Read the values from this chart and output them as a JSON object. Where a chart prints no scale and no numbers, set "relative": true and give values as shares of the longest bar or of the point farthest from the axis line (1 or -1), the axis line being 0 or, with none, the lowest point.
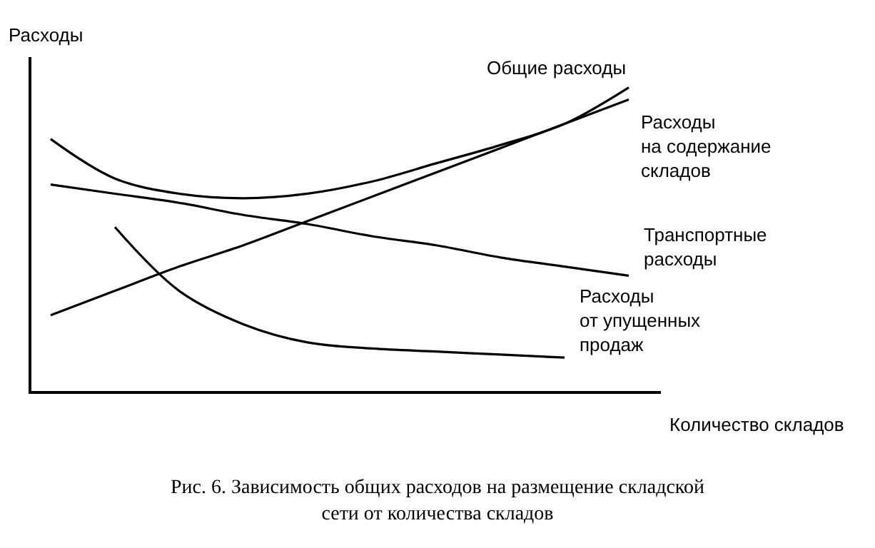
{
  "chart_data": {
    "type": "line",
    "relative": true,
    "title": "Рис. 6. Зависимость общих расходов на размещение складской\nсети от количества складов",
    "xlabel": "Количество складов",
    "ylabel": "Расходы",
    "categories": [
      null,
      null,
      null,
      null,
      null,
      null,
      null,
      null,
      null,
      null
    ],
    "series": [
      {
        "name": "Общие расходы",
        "color": "#000000",
        "values": [
          0.83,
          0.7,
          0.65,
          0.635,
          0.65,
          0.69,
          0.75,
          0.81,
          0.88,
          1.0
        ]
      },
      {
        "name": "Расходы\nна содержание\nскладов",
        "color": "#000000",
        "values": [
          0.25,
          0.33,
          0.41,
          0.48,
          0.56,
          0.64,
          0.72,
          0.8,
          0.88,
          0.96
        ]
      },
      {
        "name": "Транспортные\nрасходы",
        "color": "#000000",
        "values": [
          0.68,
          0.65,
          0.62,
          0.58,
          0.55,
          0.51,
          0.48,
          0.44,
          0.41,
          0.38
        ]
      },
      {
        "name": "Расходы\nот упущенных\nпродаж",
        "color": "#000000",
        "values": [
          null,
          0.54,
          0.33,
          0.22,
          0.16,
          0.14,
          0.13,
          0.12,
          0.11,
          null
        ]
      }
    ],
    "legend": false,
    "marker": "none",
    "line_style": "solid"
  }
}
